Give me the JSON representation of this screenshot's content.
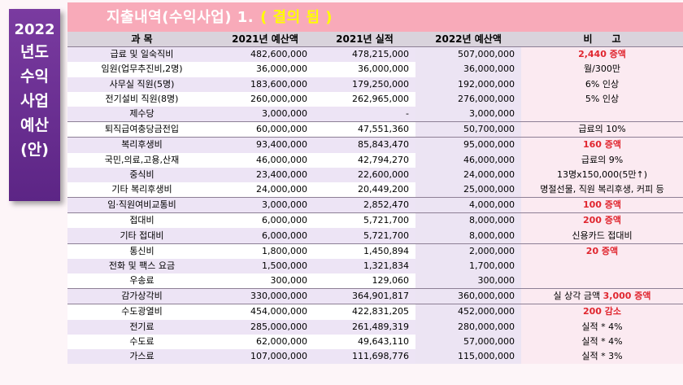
{
  "sidebar": {
    "lines": [
      "2022",
      "년도",
      "수익",
      "사업",
      "예산",
      "(안)"
    ]
  },
  "title": {
    "text": "지출내역(수익사업) 1.",
    "highlight": "( 결의 됨 )"
  },
  "headers": [
    "과 목",
    "2021년 예산액",
    "2021년 실적",
    "2022년 예산액",
    "비　　고"
  ],
  "rows": [
    {
      "item": "급료 및 일숙직비",
      "b2021": "482,600,000",
      "a2021": "478,215,000",
      "b2022": "507,000,000",
      "note": "2,440 증액",
      "noteRed": true,
      "sep": true
    },
    {
      "item": "임원(업무추진비,2명)",
      "b2021": "36,000,000",
      "a2021": "36,000,000",
      "b2022": "36,000,000",
      "note": "월/300만",
      "noteRed": false,
      "sep": false
    },
    {
      "item": "사무실 직원(5명)",
      "b2021": "183,600,000",
      "a2021": "179,250,000",
      "b2022": "192,000,000",
      "note": "6% 인상",
      "noteRed": false,
      "sep": false
    },
    {
      "item": "전기설비 직원(8명)",
      "b2021": "260,000,000",
      "a2021": "262,965,000",
      "b2022": "276,000,000",
      "note": "5% 인상",
      "noteRed": false,
      "sep": false
    },
    {
      "item": "제수당",
      "b2021": "3,000,000",
      "a2021": "-",
      "b2022": "3,000,000",
      "note": "",
      "noteRed": false,
      "sep": false
    },
    {
      "item": "퇴직급여충당금전입",
      "b2021": "60,000,000",
      "a2021": "47,551,360",
      "b2022": "50,700,000",
      "note": "급료의 10%",
      "noteRed": false,
      "sep": true
    },
    {
      "item": "복리후생비",
      "b2021": "93,400,000",
      "a2021": "85,843,470",
      "b2022": "95,000,000",
      "note": "160 증액",
      "noteRed": true,
      "sep": true
    },
    {
      "item": "국민,의료,고용,산재",
      "b2021": "46,000,000",
      "a2021": "42,794,270",
      "b2022": "46,000,000",
      "note": "급료의 9%",
      "noteRed": false,
      "sep": false
    },
    {
      "item": "중식비",
      "b2021": "23,400,000",
      "a2021": "22,600,000",
      "b2022": "24,000,000",
      "note": "13명x150,000(5만↑)",
      "noteRed": false,
      "sep": false
    },
    {
      "item": "기타 복리후생비",
      "b2021": "24,000,000",
      "a2021": "20,449,200",
      "b2022": "25,000,000",
      "note": "명절선물, 직원 복리후생, 커피 등",
      "noteRed": false,
      "sep": false
    },
    {
      "item": "임·직원여비교통비",
      "b2021": "3,000,000",
      "a2021": "2,852,470",
      "b2022": "4,000,000",
      "note": "100 증액",
      "noteRed": true,
      "sep": true
    },
    {
      "item": "접대비",
      "b2021": "6,000,000",
      "a2021": "5,721,700",
      "b2022": "8,000,000",
      "note": "200 증액",
      "noteRed": true,
      "sep": true
    },
    {
      "item": "기타 접대비",
      "b2021": "6,000,000",
      "a2021": "5,721,700",
      "b2022": "8,000,000",
      "note": "신용카드 접대비",
      "noteRed": false,
      "sep": false
    },
    {
      "item": "통신비",
      "b2021": "1,800,000",
      "a2021": "1,450,894",
      "b2022": "2,000,000",
      "note": "20 증액",
      "noteRed": true,
      "sep": true
    },
    {
      "item": "전화 및 팩스 요금",
      "b2021": "1,500,000",
      "a2021": "1,321,834",
      "b2022": "1,700,000",
      "note": "",
      "noteRed": false,
      "sep": false
    },
    {
      "item": "우송료",
      "b2021": "300,000",
      "a2021": "129,060",
      "b2022": "300,000",
      "note": "",
      "noteRed": false,
      "sep": false
    },
    {
      "item": "감가상각비",
      "b2021": "330,000,000",
      "a2021": "364,901,817",
      "b2022": "360,000,000",
      "note": "실 상각 금액 ",
      "noteRedSuffix": "3,000 증액",
      "noteRed": false,
      "sep": true
    },
    {
      "item": "수도광열비",
      "b2021": "454,000,000",
      "a2021": "422,831,205",
      "b2022": "452,000,000",
      "note": "200 감소",
      "noteRed": true,
      "sep": true
    },
    {
      "item": "전기료",
      "b2021": "285,000,000",
      "a2021": "261,489,319",
      "b2022": "280,000,000",
      "note": "실적 * 4%",
      "noteRed": false,
      "sep": false
    },
    {
      "item": "수도료",
      "b2021": "62,000,000",
      "a2021": "49,643,110",
      "b2022": "57,000,000",
      "note": "실적 * 4%",
      "noteRed": false,
      "sep": false
    },
    {
      "item": "가스료",
      "b2021": "107,000,000",
      "a2021": "111,698,776",
      "b2022": "115,000,000",
      "note": "실적 * 3%",
      "noteRed": false,
      "sep": false
    }
  ]
}
